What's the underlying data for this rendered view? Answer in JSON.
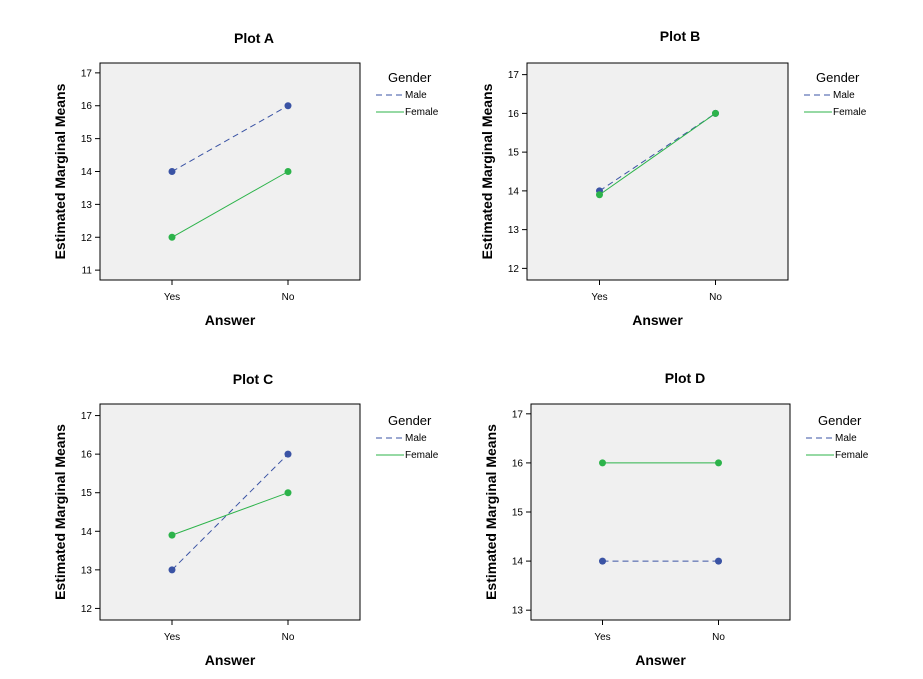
{
  "chart_data": [
    {
      "type": "line",
      "title": "Plot A",
      "xlabel": "Answer",
      "ylabel": "Estimated Marginal Means",
      "categories": [
        "Yes",
        "No"
      ],
      "ylim": [
        10.7,
        17.3
      ],
      "yticks": [
        11,
        12,
        13,
        14,
        15,
        16,
        17
      ],
      "legend_title": "Gender",
      "legend_position": "right",
      "series": [
        {
          "name": "Male",
          "values": [
            14,
            16
          ],
          "color": "#3a53a4",
          "dash": true
        },
        {
          "name": "Female",
          "values": [
            12,
            14
          ],
          "color": "#2cb34a",
          "dash": false
        }
      ]
    },
    {
      "type": "line",
      "title": "Plot B",
      "xlabel": "Answer",
      "ylabel": "Estimated Marginal Means",
      "categories": [
        "Yes",
        "No"
      ],
      "ylim": [
        11.7,
        17.3
      ],
      "yticks": [
        12,
        13,
        14,
        15,
        16,
        17
      ],
      "legend_title": "Gender",
      "legend_position": "right",
      "series": [
        {
          "name": "Male",
          "values": [
            14,
            16
          ],
          "color": "#3a53a4",
          "dash": true
        },
        {
          "name": "Female",
          "values": [
            13.9,
            16
          ],
          "color": "#2cb34a",
          "dash": false
        }
      ]
    },
    {
      "type": "line",
      "title": "Plot C",
      "xlabel": "Answer",
      "ylabel": "Estimated Marginal Means",
      "categories": [
        "Yes",
        "No"
      ],
      "ylim": [
        11.7,
        17.3
      ],
      "yticks": [
        12,
        13,
        14,
        15,
        16,
        17
      ],
      "legend_title": "Gender",
      "legend_position": "right",
      "series": [
        {
          "name": "Male",
          "values": [
            13,
            16
          ],
          "color": "#3a53a4",
          "dash": true
        },
        {
          "name": "Female",
          "values": [
            13.9,
            15
          ],
          "color": "#2cb34a",
          "dash": false
        }
      ]
    },
    {
      "type": "line",
      "title": "Plot D",
      "xlabel": "Answer",
      "ylabel": "Estimated Marginal Means",
      "categories": [
        "Yes",
        "No"
      ],
      "ylim": [
        12.8,
        17.2
      ],
      "yticks": [
        13,
        14,
        15,
        16,
        17
      ],
      "legend_title": "Gender",
      "legend_position": "right",
      "series": [
        {
          "name": "Male",
          "values": [
            14,
            14
          ],
          "color": "#3a53a4",
          "dash": true
        },
        {
          "name": "Female",
          "values": [
            16,
            16
          ],
          "color": "#2cb34a",
          "dash": false
        }
      ]
    }
  ]
}
